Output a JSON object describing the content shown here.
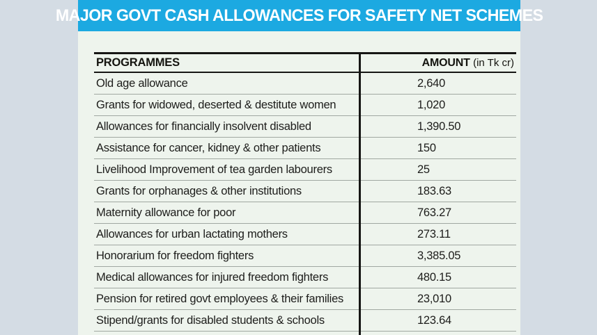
{
  "title": "MAJOR GOVT CASH ALLOWANCES FOR SAFETY NET SCHEMES",
  "table": {
    "col_programmes": "PROGRAMMES",
    "col_amount": "AMOUNT",
    "col_amount_unit": "(in Tk cr)",
    "rows": [
      {
        "programme": "Old age allowance",
        "amount": "2,640"
      },
      {
        "programme": "Grants for widowed, deserted & destitute women",
        "amount": "1,020"
      },
      {
        "programme": "Allowances for financially insolvent disabled",
        "amount": "1,390.50"
      },
      {
        "programme": "Assistance for cancer, kidney & other patients",
        "amount": "150"
      },
      {
        "programme": "Livelihood Improvement of tea garden labourers",
        "amount": "25"
      },
      {
        "programme": "Grants for orphanages & other institutions",
        "amount": "183.63"
      },
      {
        "programme": "Maternity allowance for poor",
        "amount": "763.27"
      },
      {
        "programme": "Allowances for urban lactating mothers",
        "amount": "273.11"
      },
      {
        "programme": "Honorarium for freedom fighters",
        "amount": "3,385.05"
      },
      {
        "programme": "Medical allowances for injured freedom fighters",
        "amount": "480.15"
      },
      {
        "programme": "Pension for retired govt employees & their families",
        "amount": "23,010"
      },
      {
        "programme": "Stipend/grants for disabled students & schools",
        "amount": "123.64"
      }
    ]
  },
  "colors": {
    "accent": "#1ca9e1",
    "page_bg": "#d4dce4",
    "panel_bg": "#eef4ed",
    "rule_dark": "#161614",
    "rule_light": "#a0a7a1",
    "title_text": "#ffffff",
    "body_text": "#1d1d1b"
  },
  "chart_data": {
    "type": "table",
    "title": "MAJOR GOVT CASH ALLOWANCES FOR SAFETY NET SCHEMES",
    "columns": [
      "PROGRAMMES",
      "AMOUNT (in Tk cr)"
    ],
    "rows": [
      [
        "Old age allowance",
        2640
      ],
      [
        "Grants for widowed, deserted & destitute women",
        1020
      ],
      [
        "Allowances for financially insolvent disabled",
        1390.5
      ],
      [
        "Assistance for cancer, kidney & other patients",
        150
      ],
      [
        "Livelihood Improvement of tea garden labourers",
        25
      ],
      [
        "Grants for orphanages & other institutions",
        183.63
      ],
      [
        "Maternity allowance for poor",
        763.27
      ],
      [
        "Allowances for urban lactating mothers",
        273.11
      ],
      [
        "Honorarium for freedom fighters",
        3385.05
      ],
      [
        "Medical allowances for injured freedom fighters",
        480.15
      ],
      [
        "Pension for retired govt employees & their families",
        23010
      ],
      [
        "Stipend/grants for disabled students & schools",
        123.64
      ]
    ]
  }
}
